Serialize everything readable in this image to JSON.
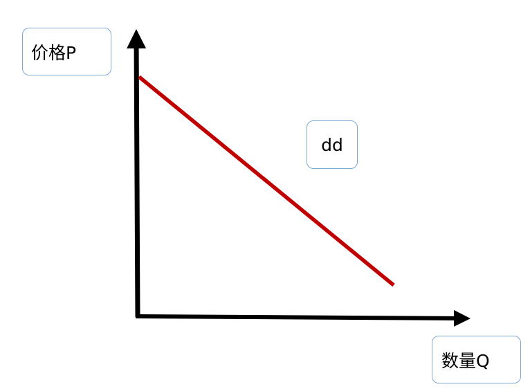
{
  "diagram": {
    "price_label": "价格P",
    "quantity_label": "数量Q",
    "curve_label": "dd",
    "colors": {
      "axes": "#000000",
      "demand_curve": "#c00000",
      "label_border": "#7fa7d4"
    }
  }
}
